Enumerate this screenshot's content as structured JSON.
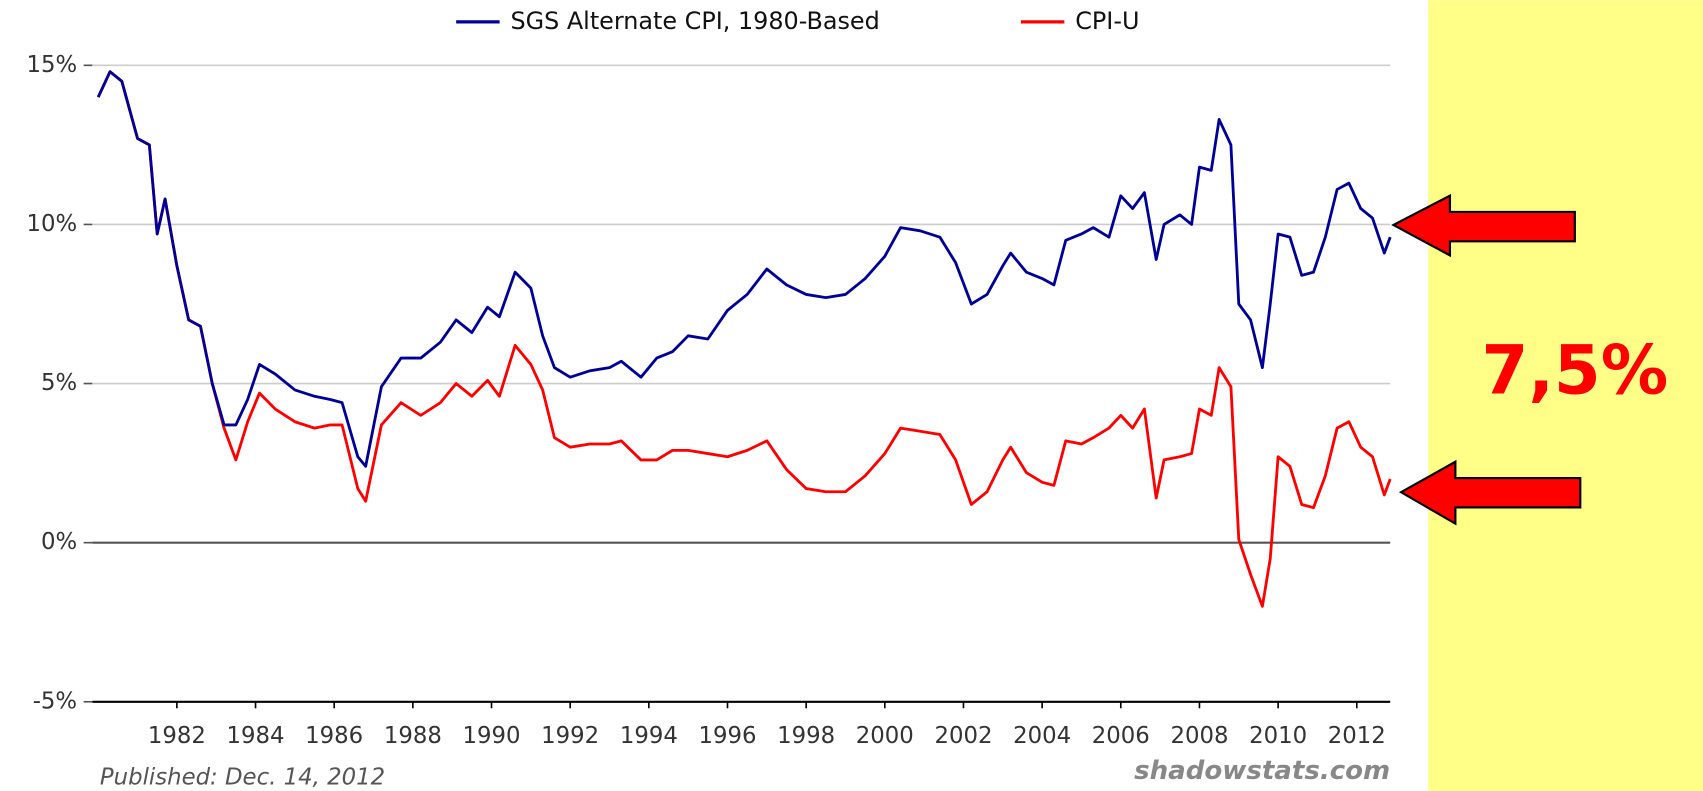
{
  "chart_data": {
    "type": "line",
    "annotations": [
      "7,5%",
      "Published: Dec. 14, 2012",
      "shadowstats.com"
    ],
    "x": [
      1980.0,
      1980.3,
      1980.6,
      1981.0,
      1981.3,
      1981.5,
      1981.7,
      1982.0,
      1982.3,
      1982.6,
      1982.9,
      1983.2,
      1983.5,
      1983.8,
      1984.1,
      1984.5,
      1985.0,
      1985.5,
      1985.9,
      1986.2,
      1986.6,
      1986.8,
      1987.2,
      1987.7,
      1988.2,
      1988.7,
      1989.1,
      1989.5,
      1989.9,
      1990.2,
      1990.6,
      1991.0,
      1991.3,
      1991.6,
      1992.0,
      1992.5,
      1993.0,
      1993.3,
      1993.8,
      1994.2,
      1994.6,
      1995.0,
      1995.5,
      1996.0,
      1996.5,
      1997.0,
      1997.5,
      1998.0,
      1998.5,
      1999.0,
      1999.5,
      2000.0,
      2000.4,
      2000.9,
      2001.4,
      2001.8,
      2002.2,
      2002.6,
      2003.0,
      2003.2,
      2003.6,
      2004.0,
      2004.3,
      2004.6,
      2005.0,
      2005.3,
      2005.7,
      2006.0,
      2006.3,
      2006.6,
      2006.9,
      2007.1,
      2007.5,
      2007.8,
      2008.0,
      2008.3,
      2008.5,
      2008.8,
      2009.0,
      2009.3,
      2009.6,
      2009.8,
      2010.0,
      2010.3,
      2010.6,
      2010.9,
      2011.2,
      2011.5,
      2011.8,
      2012.1,
      2012.4,
      2012.7,
      2012.85
    ],
    "series": [
      {
        "name": "SGS Alternate CPI, 1980-Based",
        "color": "#000099",
        "values": [
          14.0,
          14.8,
          14.5,
          12.7,
          12.5,
          9.7,
          10.8,
          8.7,
          7.0,
          6.8,
          5.0,
          3.7,
          3.7,
          4.5,
          5.6,
          5.3,
          4.8,
          4.6,
          4.5,
          4.4,
          2.7,
          2.4,
          4.9,
          5.8,
          5.8,
          6.3,
          7.0,
          6.6,
          7.4,
          7.1,
          8.5,
          8.0,
          6.5,
          5.5,
          5.2,
          5.4,
          5.5,
          5.7,
          5.2,
          5.8,
          6.0,
          6.5,
          6.4,
          7.3,
          7.8,
          8.6,
          8.1,
          7.8,
          7.7,
          7.8,
          8.3,
          9.0,
          9.9,
          9.8,
          9.6,
          8.8,
          7.5,
          7.8,
          8.7,
          9.1,
          8.5,
          8.3,
          8.1,
          9.5,
          9.7,
          9.9,
          9.6,
          10.9,
          10.5,
          11.0,
          8.9,
          10.0,
          10.3,
          10.0,
          11.8,
          11.7,
          13.3,
          12.5,
          7.5,
          7.0,
          5.5,
          7.5,
          9.7,
          9.6,
          8.4,
          8.5,
          9.6,
          11.1,
          11.3,
          10.5,
          10.2,
          9.1,
          9.6
        ]
      },
      {
        "name": "CPI-U",
        "color": "#ff0000",
        "values": [
          14.0,
          14.8,
          14.5,
          12.7,
          12.5,
          9.7,
          10.8,
          8.7,
          7.0,
          6.8,
          5.0,
          3.6,
          2.6,
          3.8,
          4.7,
          4.2,
          3.8,
          3.6,
          3.7,
          3.7,
          1.7,
          1.3,
          3.7,
          4.4,
          4.0,
          4.4,
          5.0,
          4.6,
          5.1,
          4.6,
          6.2,
          5.6,
          4.8,
          3.3,
          3.0,
          3.1,
          3.1,
          3.2,
          2.6,
          2.6,
          2.9,
          2.9,
          2.8,
          2.7,
          2.9,
          3.2,
          2.3,
          1.7,
          1.6,
          1.6,
          2.1,
          2.8,
          3.6,
          3.5,
          3.4,
          2.6,
          1.2,
          1.6,
          2.6,
          3.0,
          2.2,
          1.9,
          1.8,
          3.2,
          3.1,
          3.3,
          3.6,
          4.0,
          3.6,
          4.2,
          1.4,
          2.6,
          2.7,
          2.8,
          4.2,
          4.0,
          5.5,
          4.9,
          0.1,
          -1.0,
          -2.0,
          -0.5,
          2.7,
          2.4,
          1.2,
          1.1,
          2.1,
          3.6,
          3.8,
          3.0,
          2.7,
          1.5,
          2.0
        ]
      }
    ],
    "xlim": [
      1979.85,
      2012.85
    ],
    "xticks": [
      1982,
      1984,
      1986,
      1988,
      1990,
      1992,
      1994,
      1996,
      1998,
      2000,
      2002,
      2004,
      2006,
      2008,
      2010,
      2012
    ],
    "ylim": [
      -5,
      15
    ],
    "yticks": [
      {
        "value": -5,
        "label": "-5%"
      },
      {
        "value": 0,
        "label": "0%"
      },
      {
        "value": 5,
        "label": "5%"
      },
      {
        "value": 10,
        "label": "10%"
      },
      {
        "value": 15,
        "label": "15%"
      }
    ],
    "grid": true,
    "legend": "top"
  }
}
